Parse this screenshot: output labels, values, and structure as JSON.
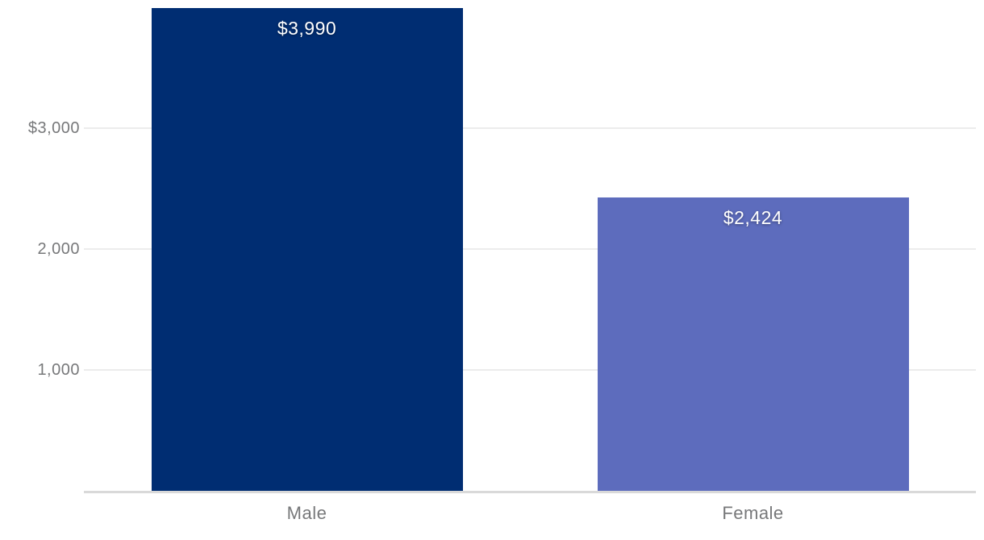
{
  "chart_data": {
    "type": "bar",
    "title": "",
    "xlabel": "",
    "ylabel": "",
    "categories": [
      "Male",
      "Female"
    ],
    "values": [
      3990,
      2424
    ],
    "bar_labels": [
      "$3,990",
      "$2,424"
    ],
    "bar_colors": [
      "#002D72",
      "#5D6CBD"
    ],
    "yticks": [
      {
        "value": 3000,
        "label": "$3,000"
      },
      {
        "value": 2000,
        "label": "2,000"
      },
      {
        "value": 1000,
        "label": "1,000"
      }
    ],
    "ylim": [
      0,
      4060
    ],
    "grid": true,
    "legend": false,
    "colors": {
      "gridline": "#ECECEC",
      "baseline": "#D9D9D9",
      "axis_text": "#77787A",
      "data_label_text": "#FFFFFF",
      "background": "#FFFFFF"
    }
  }
}
